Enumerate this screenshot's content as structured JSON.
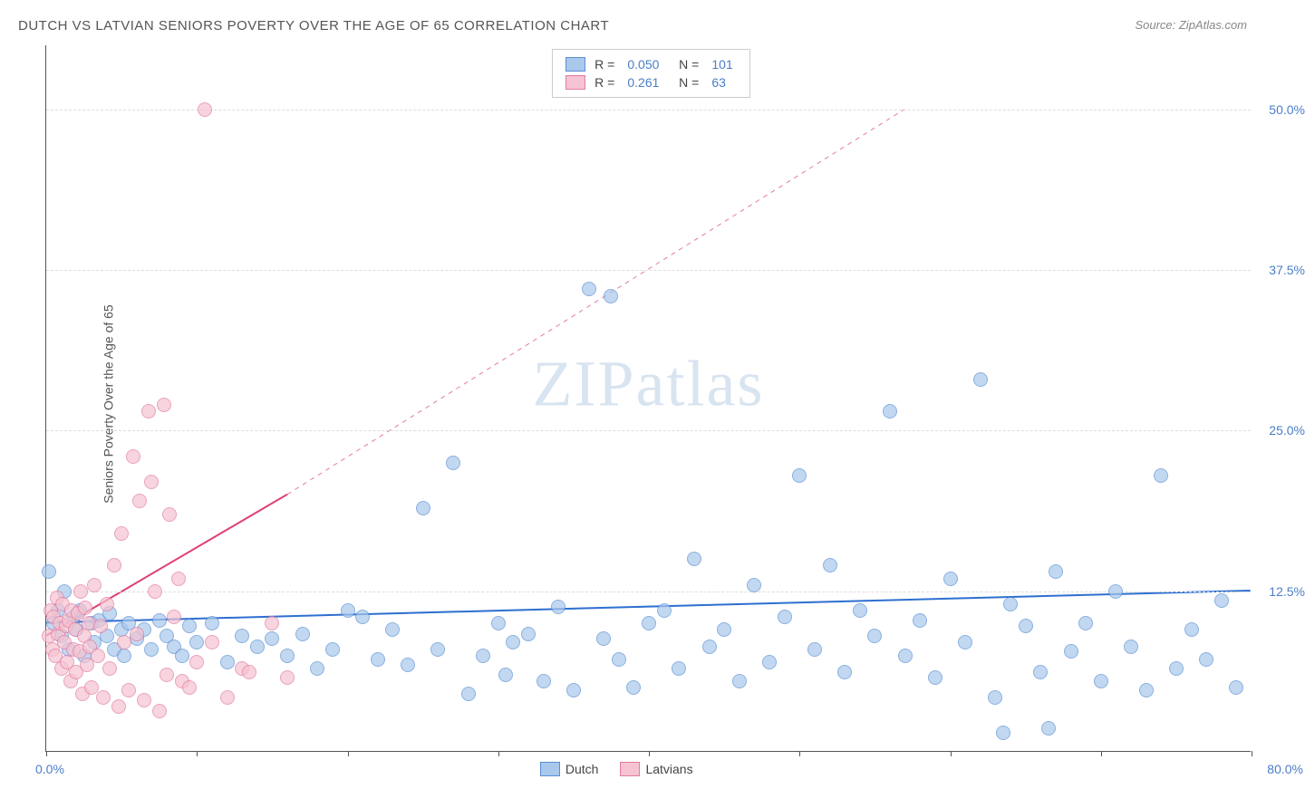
{
  "title": "DUTCH VS LATVIAN SENIORS POVERTY OVER THE AGE OF 65 CORRELATION CHART",
  "source": "Source: ZipAtlas.com",
  "ylabel": "Seniors Poverty Over the Age of 65",
  "watermark": "ZIPatlas",
  "chart": {
    "type": "scatter",
    "background_color": "#ffffff",
    "grid_color": "#dddddd",
    "grid_dash": "4,4",
    "axis_color": "#555555",
    "tick_label_color": "#4a7ec9",
    "tick_fontsize": 14,
    "label_fontsize": 14,
    "title_fontsize": 15,
    "title_color": "#555555",
    "xlim": [
      0,
      80
    ],
    "ylim": [
      0,
      55
    ],
    "ygrid_values": [
      12.5,
      25.0,
      37.5,
      50.0
    ],
    "ytick_labels": [
      "12.5%",
      "25.0%",
      "37.5%",
      "50.0%"
    ],
    "xtick_positions": [
      0,
      10,
      20,
      30,
      40,
      50,
      60,
      70,
      80
    ],
    "xmin_label": "0.0%",
    "xmax_label": "80.0%",
    "marker_radius": 8,
    "marker_border_width": 1,
    "marker_fill_opacity": 0.25,
    "series": [
      {
        "name": "Dutch",
        "fill_color": "#a9c8ec",
        "border_color": "#5a8fd4",
        "stats": {
          "R": "0.050",
          "N": "101"
        },
        "trend": {
          "x1": 0,
          "y1": 10.0,
          "x2": 80,
          "y2": 12.5,
          "color": "#2e6fd0",
          "width": 2
        },
        "trend_dash": {
          "x1": 20,
          "y1": 10.6,
          "x2": 80,
          "y2": 12.5,
          "color": "#2e6fd0",
          "width": 1
        },
        "points": [
          [
            0.2,
            14
          ],
          [
            0.5,
            10
          ],
          [
            0.8,
            11
          ],
          [
            1.0,
            9
          ],
          [
            1.2,
            12.5
          ],
          [
            1.5,
            8
          ],
          [
            1.8,
            10.5
          ],
          [
            2.0,
            9.5
          ],
          [
            2.2,
            11
          ],
          [
            2.5,
            7.5
          ],
          [
            3,
            10
          ],
          [
            3.2,
            8.5
          ],
          [
            3.5,
            10.2
          ],
          [
            4,
            9
          ],
          [
            4.2,
            10.8
          ],
          [
            4.5,
            8
          ],
          [
            5,
            9.5
          ],
          [
            5.2,
            7.5
          ],
          [
            5.5,
            10
          ],
          [
            6,
            8.8
          ],
          [
            6.5,
            9.5
          ],
          [
            7,
            8
          ],
          [
            7.5,
            10.2
          ],
          [
            8,
            9
          ],
          [
            8.5,
            8.2
          ],
          [
            9,
            7.5
          ],
          [
            9.5,
            9.8
          ],
          [
            10,
            8.5
          ],
          [
            11,
            10
          ],
          [
            12,
            7
          ],
          [
            13,
            9
          ],
          [
            14,
            8.2
          ],
          [
            15,
            8.8
          ],
          [
            16,
            7.5
          ],
          [
            17,
            9.2
          ],
          [
            18,
            6.5
          ],
          [
            19,
            8
          ],
          [
            20,
            11
          ],
          [
            21,
            10.5
          ],
          [
            22,
            7.2
          ],
          [
            23,
            9.5
          ],
          [
            24,
            6.8
          ],
          [
            25,
            19
          ],
          [
            26,
            8
          ],
          [
            27,
            22.5
          ],
          [
            28,
            4.5
          ],
          [
            29,
            7.5
          ],
          [
            30,
            10
          ],
          [
            30.5,
            6
          ],
          [
            31,
            8.5
          ],
          [
            32,
            9.2
          ],
          [
            33,
            5.5
          ],
          [
            34,
            11.3
          ],
          [
            35,
            4.8
          ],
          [
            36,
            36
          ],
          [
            37,
            8.8
          ],
          [
            37.5,
            35.5
          ],
          [
            38,
            7.2
          ],
          [
            39,
            5
          ],
          [
            40,
            10
          ],
          [
            41,
            11
          ],
          [
            42,
            6.5
          ],
          [
            43,
            15
          ],
          [
            44,
            8.2
          ],
          [
            45,
            9.5
          ],
          [
            46,
            5.5
          ],
          [
            47,
            13
          ],
          [
            48,
            7
          ],
          [
            49,
            10.5
          ],
          [
            50,
            21.5
          ],
          [
            51,
            8
          ],
          [
            52,
            14.5
          ],
          [
            53,
            6.2
          ],
          [
            54,
            11
          ],
          [
            55,
            9
          ],
          [
            56,
            26.5
          ],
          [
            57,
            7.5
          ],
          [
            58,
            10.2
          ],
          [
            59,
            5.8
          ],
          [
            60,
            13.5
          ],
          [
            61,
            8.5
          ],
          [
            62,
            29
          ],
          [
            63,
            4.2
          ],
          [
            64,
            11.5
          ],
          [
            65,
            9.8
          ],
          [
            66,
            6.2
          ],
          [
            67,
            14
          ],
          [
            68,
            7.8
          ],
          [
            69,
            10
          ],
          [
            70,
            5.5
          ],
          [
            71,
            12.5
          ],
          [
            72,
            8.2
          ],
          [
            73,
            4.8
          ],
          [
            74,
            21.5
          ],
          [
            75,
            6.5
          ],
          [
            76,
            9.5
          ],
          [
            77,
            7.2
          ],
          [
            78,
            11.8
          ],
          [
            79,
            5
          ],
          [
            63.5,
            1.5
          ],
          [
            66.5,
            1.8
          ]
        ]
      },
      {
        "name": "Latvians",
        "fill_color": "#f5c3d1",
        "border_color": "#e37ba0",
        "stats": {
          "R": "0.261",
          "N": "63"
        },
        "trend": {
          "x1": 0,
          "y1": 9.0,
          "x2": 16,
          "y2": 20.0,
          "color": "#e04078",
          "width": 2
        },
        "trend_dash": {
          "x1": 16,
          "y1": 20.0,
          "x2": 57,
          "y2": 50.0,
          "color": "#e37ba0",
          "width": 1
        },
        "points": [
          [
            0.2,
            9
          ],
          [
            0.3,
            11
          ],
          [
            0.4,
            8
          ],
          [
            0.5,
            10.5
          ],
          [
            0.6,
            7.5
          ],
          [
            0.7,
            12
          ],
          [
            0.8,
            9.2
          ],
          [
            0.9,
            10
          ],
          [
            1.0,
            6.5
          ],
          [
            1.1,
            11.5
          ],
          [
            1.2,
            8.5
          ],
          [
            1.3,
            9.8
          ],
          [
            1.4,
            7
          ],
          [
            1.5,
            10.2
          ],
          [
            1.6,
            5.5
          ],
          [
            1.7,
            11
          ],
          [
            1.8,
            8
          ],
          [
            1.9,
            9.5
          ],
          [
            2.0,
            6.2
          ],
          [
            2.1,
            10.8
          ],
          [
            2.2,
            7.8
          ],
          [
            2.3,
            12.5
          ],
          [
            2.4,
            4.5
          ],
          [
            2.5,
            9
          ],
          [
            2.6,
            11.2
          ],
          [
            2.7,
            6.8
          ],
          [
            2.8,
            10
          ],
          [
            2.9,
            8.2
          ],
          [
            3.0,
            5
          ],
          [
            3.2,
            13
          ],
          [
            3.4,
            7.5
          ],
          [
            3.6,
            9.8
          ],
          [
            3.8,
            4.2
          ],
          [
            4.0,
            11.5
          ],
          [
            4.2,
            6.5
          ],
          [
            4.5,
            14.5
          ],
          [
            4.8,
            3.5
          ],
          [
            5.0,
            17
          ],
          [
            5.2,
            8.5
          ],
          [
            5.5,
            4.8
          ],
          [
            5.8,
            23
          ],
          [
            6.0,
            9.2
          ],
          [
            6.2,
            19.5
          ],
          [
            6.5,
            4
          ],
          [
            6.8,
            26.5
          ],
          [
            7.0,
            21
          ],
          [
            7.2,
            12.5
          ],
          [
            7.5,
            3.2
          ],
          [
            7.8,
            27
          ],
          [
            8.0,
            6
          ],
          [
            8.2,
            18.5
          ],
          [
            8.5,
            10.5
          ],
          [
            8.8,
            13.5
          ],
          [
            9.0,
            5.5
          ],
          [
            9.5,
            5
          ],
          [
            10,
            7
          ],
          [
            10.5,
            50
          ],
          [
            11,
            8.5
          ],
          [
            12,
            4.2
          ],
          [
            13,
            6.5
          ],
          [
            13.5,
            6.2
          ],
          [
            15,
            10
          ],
          [
            16,
            5.8
          ]
        ]
      }
    ]
  },
  "legend_labels": {
    "dutch": "Dutch",
    "latvians": "Latvians"
  }
}
